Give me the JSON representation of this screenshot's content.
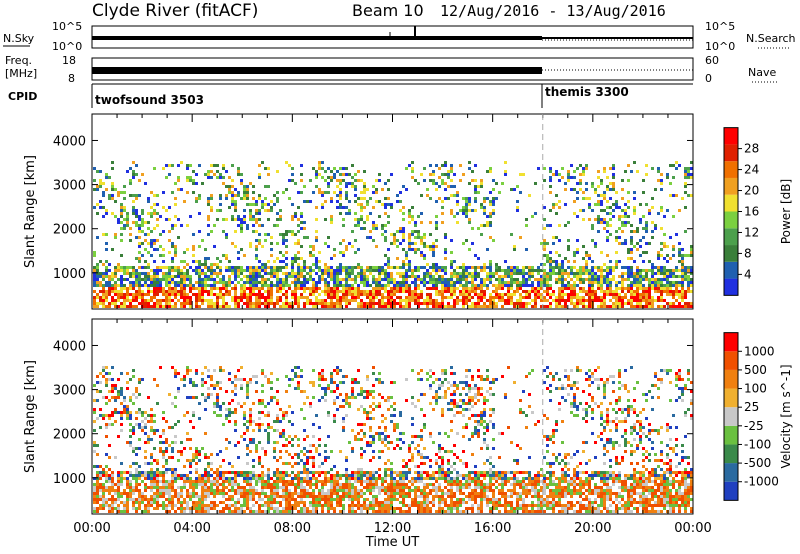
{
  "header": {
    "site": "Clyde River (fitACF)",
    "beam": "Beam 10",
    "dates": "12/Aug/2016 - 13/Aug/2016"
  },
  "top_panels": {
    "nsky": {
      "label": "N.Sky",
      "ytick_top": "10^5",
      "ytick_bottom": "10^0"
    },
    "nsearch": {
      "label": "N.Search",
      "ytick_top": "10^5",
      "ytick_bottom": "10^0"
    },
    "freq": {
      "label_line1": "Freq.",
      "label_line2": "[MHz]",
      "ytick_top": "18",
      "ytick_bottom": "8"
    },
    "nave": {
      "label": "Nave",
      "ytick_top": "60",
      "ytick_bottom": "0"
    },
    "cpid": {
      "label": "CPID",
      "programs": [
        {
          "name": "twofsound 3503",
          "start_hour": 0
        },
        {
          "name": "themis 3300",
          "start_hour": 18
        }
      ]
    }
  },
  "chart_data": [
    {
      "type": "heatmap",
      "name": "Power",
      "xlabel": "",
      "ylabel": "Slant Range [km]",
      "xlim": [
        0,
        24
      ],
      "ylim": [
        180,
        4600
      ],
      "yticks": [
        "1000",
        "2000",
        "3000",
        "4000"
      ],
      "colorbar": {
        "label": "Power [dB]",
        "ticks": [
          "4",
          "8",
          "12",
          "16",
          "20",
          "24",
          "28"
        ],
        "colors": [
          "#2030e0",
          "#2060b0",
          "#3a7f3a",
          "#4ca04c",
          "#7bd040",
          "#f0e030",
          "#f0a020",
          "#f07000",
          "#e02000",
          "#ff0000"
        ]
      }
    },
    {
      "type": "heatmap",
      "name": "Velocity",
      "xlabel": "Time UT",
      "ylabel": "Slant Range [km]",
      "xlim": [
        0,
        24
      ],
      "ylim": [
        180,
        4600
      ],
      "xticks": [
        "00:00",
        "04:00",
        "08:00",
        "12:00",
        "16:00",
        "20:00",
        "00:00"
      ],
      "yticks": [
        "1000",
        "2000",
        "3000",
        "4000"
      ],
      "colorbar": {
        "label": "Velocity [m s^-1]",
        "ticks": [
          "1000",
          "500",
          "100",
          "25",
          "-25",
          "-100",
          "-500",
          "-1000"
        ],
        "colors": [
          "#2040c0",
          "#2a6aa0",
          "#3a8a4a",
          "#6ac040",
          "#c8c8c8",
          "#f0b030",
          "#f08010",
          "#f05000",
          "#ff0000"
        ]
      }
    }
  ]
}
